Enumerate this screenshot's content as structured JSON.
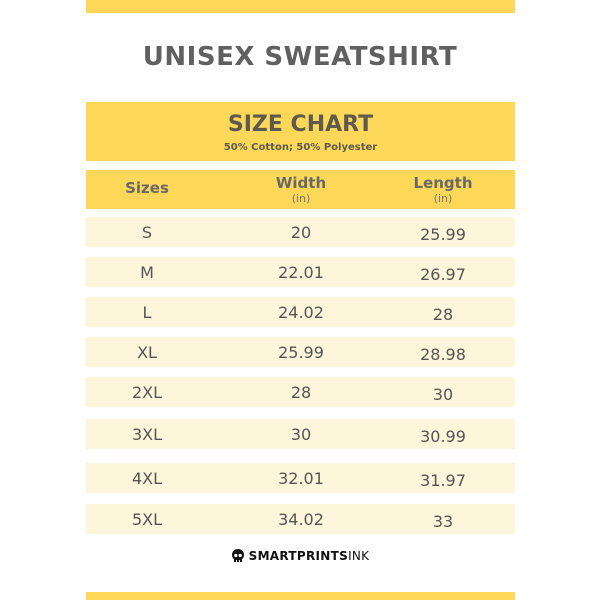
{
  "product_title": "UNISEX SWEATSHIRT",
  "chart": {
    "title": "SIZE CHART",
    "subtitle": "50% Cotton; 50% Polyester",
    "columns": [
      {
        "label": "Sizes",
        "unit": ""
      },
      {
        "label": "Width",
        "unit": "(in)"
      },
      {
        "label": "Length",
        "unit": "(in)"
      }
    ],
    "rows": [
      {
        "size": "S",
        "width": "20",
        "length": "25.99"
      },
      {
        "size": "M",
        "width": "22.01",
        "length": "26.97"
      },
      {
        "size": "L",
        "width": "24.02",
        "length": "28"
      },
      {
        "size": "XL",
        "width": "25.99",
        "length": "28.98"
      },
      {
        "size": "2XL",
        "width": "28",
        "length": "30"
      },
      {
        "size": "3XL",
        "width": "30",
        "length": "30.99"
      },
      {
        "size": "4XL",
        "width": "32.01",
        "length": "31.97"
      },
      {
        "size": "5XL",
        "width": "34.02",
        "length": "33"
      }
    ]
  },
  "brand": {
    "name_bold": "SMARTPRINTS",
    "name_light": "INK",
    "icon": "skull-icon"
  },
  "colors": {
    "accent": "#fdd858",
    "row_bg": "#fef6db",
    "text": "#5b5b5b"
  }
}
